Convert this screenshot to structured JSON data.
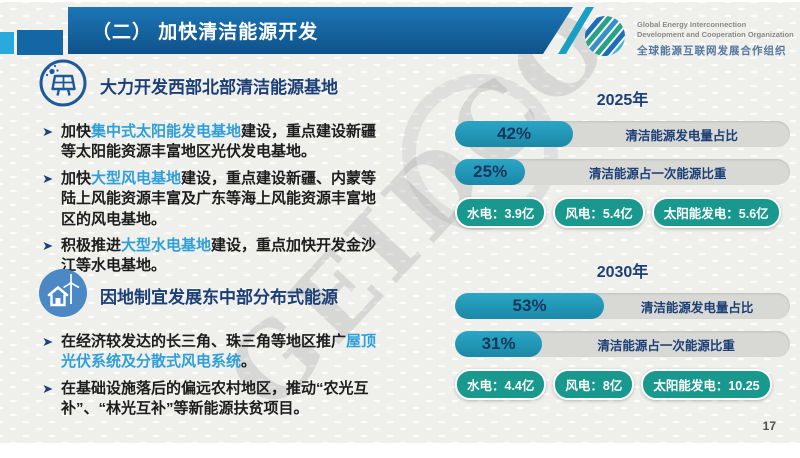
{
  "header": {
    "title": "（二） 加快清洁能源开发",
    "logo": {
      "line1": "Global Energy Interconnection",
      "line2": "Development and Cooperation Organization",
      "line3": "全球能源互联网发展合作组织",
      "icon": "globe-icon"
    }
  },
  "watermark": "GEIDCO",
  "sections": [
    {
      "icon": "solar-panel-icon",
      "heading": "大力开发西部北部清洁能源基地",
      "bullets": [
        {
          "pre": "加快",
          "highlight": "集中式太阳能发电基地",
          "post": "建设，重点建设新疆等太阳能资源丰富地区光伏发电基地。"
        },
        {
          "pre": "加快",
          "highlight": "大型风电基地",
          "post": "建设，重点建设新疆、内蒙等陆上风能资源丰富及广东等海上风能资源丰富地区的风电基地。"
        },
        {
          "pre": "积极推进",
          "highlight": "大型水电基地",
          "post": "建设，重点加快开发金沙江等水电基地。"
        }
      ]
    },
    {
      "icon": "house-windmill-icon",
      "heading": "因地制宜发展东中部分布式能源",
      "bullets": [
        {
          "pre": "在经济较发达的长三角、珠三角等地区推广",
          "highlight": "屋顶光伏系统及分散式风电系统",
          "post": "。"
        },
        {
          "pre": "在基础设施落后的偏远农村地区，推动“农光互补”、“林光互补”等新能源扶贫项目。",
          "highlight": "",
          "post": ""
        }
      ]
    }
  ],
  "years": [
    {
      "label": "2025年",
      "bars": [
        {
          "value": "42%",
          "pct": 42,
          "label": "清洁能源发电量占比"
        },
        {
          "value": "25%",
          "pct": 25,
          "label": "清洁能源占一次能源比重"
        }
      ],
      "pills": [
        "水电：3.9亿",
        "风电：5.4亿",
        "太阳能发电：5.6亿"
      ]
    },
    {
      "label": "2030年",
      "bars": [
        {
          "value": "53%",
          "pct": 53,
          "label": "清洁能源发电量占比"
        },
        {
          "value": "31%",
          "pct": 31,
          "label": "清洁能源占一次能源比重"
        }
      ],
      "pills": [
        "水电：4.4亿",
        "风电：8亿",
        "太阳能发电：10.25"
      ]
    }
  ],
  "page_number": "17",
  "colors": {
    "title_bar_blue": "#11568f",
    "accent_cyan": "#2aa9dd",
    "slash_teal": "#18a0c4",
    "stat_fill_teal": "#2095b5",
    "stat_track_gray": "#d8d8d5",
    "pill_green": "#19988e",
    "navy_text": "#1c3f75",
    "highlight_blue": "#2f9fd8",
    "background": "#efefec"
  }
}
